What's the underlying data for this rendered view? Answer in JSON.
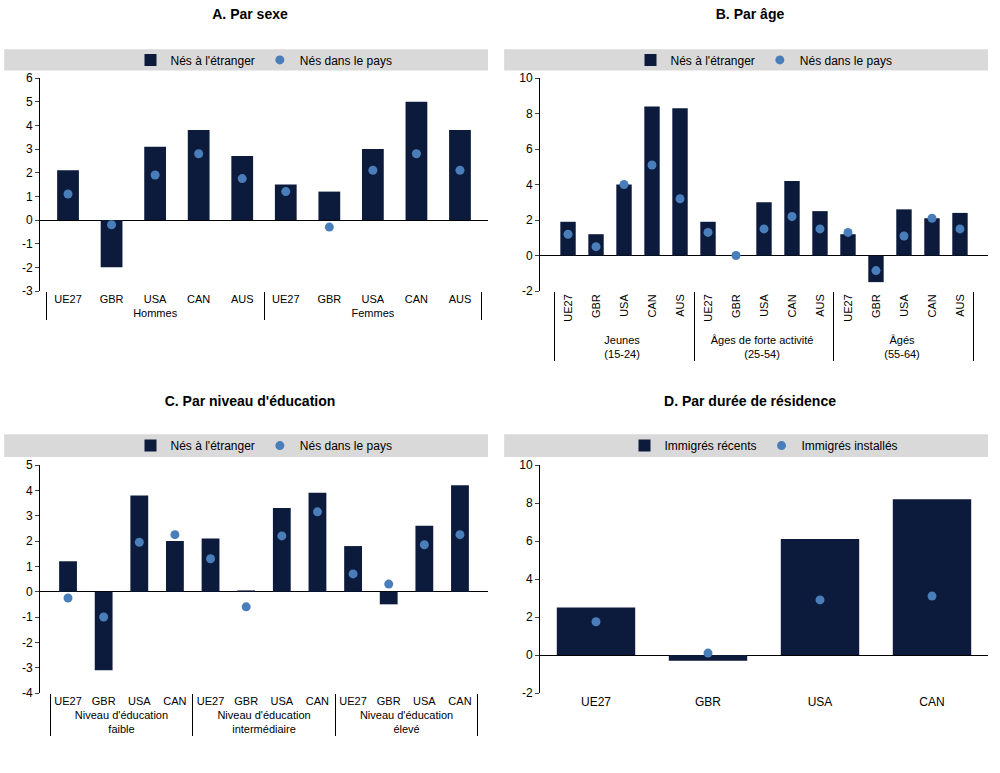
{
  "chart_data": [
    {
      "type": "bar",
      "title": "A. Par sexe",
      "categories": [
        "UE27",
        "GBR",
        "USA",
        "CAN",
        "AUS",
        "UE27",
        "GBR",
        "USA",
        "CAN",
        "AUS"
      ],
      "groups": [
        "Hommes",
        "Hommes",
        "Hommes",
        "Hommes",
        "Hommes",
        "Femmes",
        "Femmes",
        "Femmes",
        "Femmes",
        "Femmes"
      ],
      "series": [
        {
          "name": "Nés à l'étranger",
          "type": "bar",
          "color": "#0c1a3c",
          "values": [
            2.1,
            -2.0,
            3.1,
            3.8,
            2.7,
            1.5,
            1.2,
            3.0,
            5.0,
            3.8
          ]
        },
        {
          "name": "Nés dans le pays",
          "type": "scatter",
          "marker": "circle",
          "color": "#4a7ebb",
          "values": [
            1.1,
            -0.2,
            1.9,
            2.8,
            1.75,
            1.2,
            -0.3,
            2.1,
            2.8,
            2.1
          ]
        }
      ],
      "ylim": [
        -3,
        6
      ],
      "yticks": [
        -3,
        -2,
        -1,
        0,
        1,
        2,
        3,
        4,
        5,
        6
      ],
      "grid": false,
      "legend": "top"
    },
    {
      "type": "bar",
      "title": "B. Par âge",
      "categories": [
        "UE27",
        "GBR",
        "USA",
        "CAN",
        "AUS",
        "UE27",
        "GBR",
        "USA",
        "CAN",
        "AUS",
        "UE27",
        "GBR",
        "USA",
        "CAN",
        "AUS"
      ],
      "groups": [
        "Jeunes\n(15-24)",
        "Jeunes\n(15-24)",
        "Jeunes\n(15-24)",
        "Jeunes\n(15-24)",
        "Jeunes\n(15-24)",
        "Âges de forte activité\n(25-54)",
        "Âges de forte activité\n(25-54)",
        "Âges de forte activité\n(25-54)",
        "Âges de forte activité\n(25-54)",
        "Âges de forte activité\n(25-54)",
        "Âgés\n(55-64)",
        "Âgés\n(55-64)",
        "Âgés\n(55-64)",
        "Âgés\n(55-64)",
        "Âgés\n(55-64)"
      ],
      "series": [
        {
          "name": "Nés à l'étranger",
          "type": "bar",
          "color": "#0c1a3c",
          "values": [
            1.9,
            1.2,
            4.0,
            8.4,
            8.3,
            1.9,
            0.0,
            3.0,
            4.2,
            2.5,
            1.2,
            -1.5,
            2.6,
            2.1,
            2.4
          ]
        },
        {
          "name": "Nés dans le pays",
          "type": "scatter",
          "marker": "circle",
          "color": "#4a7ebb",
          "values": [
            1.2,
            0.5,
            4.0,
            5.1,
            3.2,
            1.3,
            0.0,
            1.5,
            2.2,
            1.5,
            1.3,
            -0.85,
            1.1,
            2.1,
            1.5
          ]
        }
      ],
      "ylim": [
        -2,
        10
      ],
      "yticks": [
        -2,
        0,
        2,
        4,
        6,
        8,
        10
      ],
      "grid": false,
      "legend": "top"
    },
    {
      "type": "bar",
      "title": "C. Par niveau d'éducation",
      "categories": [
        "UE27",
        "GBR",
        "USA",
        "CAN",
        "UE27",
        "GBR",
        "USA",
        "CAN",
        "UE27",
        "GBR",
        "USA",
        "CAN"
      ],
      "groups": [
        "Niveau d'éducation\nfaible",
        "Niveau d'éducation\nfaible",
        "Niveau d'éducation\nfaible",
        "Niveau d'éducation\nfaible",
        "Niveau d'éducation\nintermédiaire",
        "Niveau d'éducation\nintermédiaire",
        "Niveau d'éducation\nintermédiaire",
        "Niveau d'éducation\nintermédiaire",
        "Niveau d'éducation\nélevé",
        "Niveau d'éducation\nélevé",
        "Niveau d'éducation\nélevé",
        "Niveau d'éducation\nélevé"
      ],
      "series": [
        {
          "name": "Nés à l'étranger",
          "type": "bar",
          "color": "#0c1a3c",
          "values": [
            1.2,
            -3.1,
            3.8,
            2.0,
            2.1,
            0.05,
            3.3,
            3.9,
            1.8,
            -0.5,
            2.6,
            4.2
          ]
        },
        {
          "name": "Nés dans le pays",
          "type": "scatter",
          "marker": "circle",
          "color": "#4a7ebb",
          "values": [
            -0.25,
            -1.0,
            1.95,
            2.25,
            1.3,
            -0.6,
            2.2,
            3.15,
            0.7,
            0.3,
            1.85,
            2.25
          ]
        }
      ],
      "ylim": [
        -4,
        5
      ],
      "yticks": [
        -4,
        -3,
        -2,
        -1,
        0,
        1,
        2,
        3,
        4,
        5
      ],
      "grid": false,
      "legend": "top"
    },
    {
      "type": "bar",
      "title": "D. Par durée de résidence",
      "categories": [
        "UE27",
        "GBR",
        "USA",
        "CAN"
      ],
      "series": [
        {
          "name": "Immigrés récents",
          "type": "bar",
          "color": "#0c1a3c",
          "values": [
            2.5,
            -0.3,
            6.1,
            8.2
          ]
        },
        {
          "name": "Immigrés installés",
          "type": "scatter",
          "marker": "circle",
          "color": "#4a7ebb",
          "values": [
            1.75,
            0.1,
            2.9,
            3.1
          ]
        }
      ],
      "ylim": [
        -2,
        10
      ],
      "yticks": [
        -2,
        0,
        2,
        4,
        6,
        8,
        10
      ],
      "grid": false,
      "legend": "top"
    }
  ]
}
